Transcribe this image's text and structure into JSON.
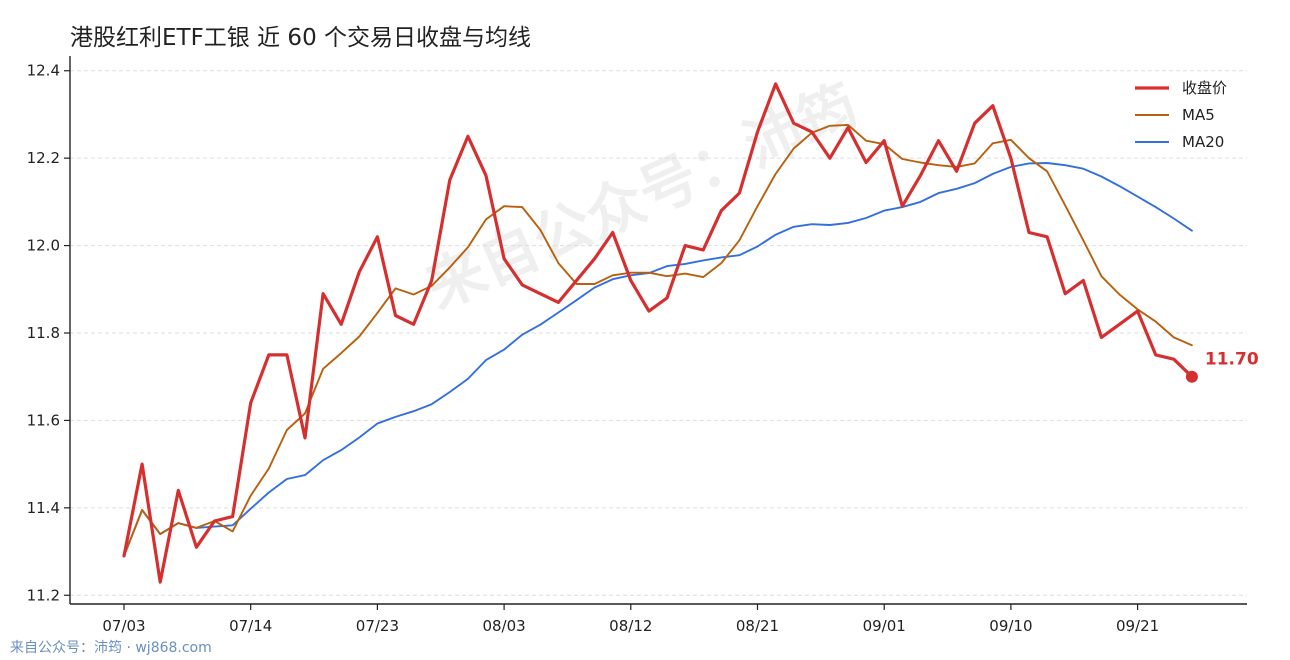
{
  "title": "港股红利ETF工银 近 60 个交易日收盘与均线",
  "footer": "来自公众号：沛筠 · wj868.com",
  "watermark": "来自公众号：沛筠",
  "colors": {
    "close": "#d62f2f",
    "ma5": "#b8600e",
    "ma20": "#3370dd",
    "grid": "#dddddd",
    "axis": "#222222"
  },
  "chart_data": {
    "type": "line",
    "title": "港股红利ETF工银 近 60 个交易日收盘与均线",
    "ylim": [
      11.18,
      12.42
    ],
    "yticks": [
      "11.2",
      "11.4",
      "11.6",
      "11.8",
      "12.0",
      "12.2",
      "12.4"
    ],
    "xticks": [
      {
        "index": 0,
        "label": "07/03"
      },
      {
        "index": 7,
        "label": "07/14"
      },
      {
        "index": 14,
        "label": "07/23"
      },
      {
        "index": 21,
        "label": "08/03"
      },
      {
        "index": 28,
        "label": "08/12"
      },
      {
        "index": 35,
        "label": "08/21"
      },
      {
        "index": 42,
        "label": "09/01"
      },
      {
        "index": 49,
        "label": "09/10"
      },
      {
        "index": 56,
        "label": "09/21"
      }
    ],
    "grid": "horizontal dashed",
    "legend_position": "top-right",
    "last_value_label": "11.70",
    "series": [
      {
        "name": "收盘价",
        "values": [
          11.29,
          11.5,
          11.23,
          11.44,
          11.31,
          11.37,
          11.38,
          11.64,
          11.75,
          11.75,
          11.56,
          11.89,
          11.82,
          11.94,
          12.02,
          11.84,
          11.82,
          11.92,
          12.15,
          12.25,
          12.16,
          11.97,
          11.91,
          11.89,
          11.87,
          11.92,
          11.97,
          12.03,
          11.92,
          11.85,
          11.88,
          12.0,
          11.99,
          12.08,
          12.12,
          12.26,
          12.37,
          12.28,
          12.26,
          12.2,
          12.27,
          12.19,
          12.24,
          12.09,
          12.16,
          12.24,
          12.17,
          12.28,
          12.32,
          12.2,
          12.03,
          12.02,
          11.89,
          11.92,
          11.79,
          11.82,
          11.85,
          11.75,
          11.74,
          11.7
        ]
      },
      {
        "name": "MA5",
        "values": [
          11.29,
          11.395,
          11.34,
          11.365,
          11.354,
          11.37,
          11.346,
          11.428,
          11.49,
          11.578,
          11.616,
          11.718,
          11.754,
          11.792,
          11.846,
          11.902,
          11.888,
          11.908,
          11.95,
          11.996,
          12.06,
          12.09,
          12.088,
          12.036,
          11.96,
          11.912,
          11.912,
          11.932,
          11.938,
          11.938,
          11.93,
          11.936,
          11.928,
          11.96,
          12.012,
          12.09,
          12.164,
          12.222,
          12.258,
          12.274,
          12.276,
          12.24,
          12.232,
          12.198,
          12.19,
          12.184,
          12.18,
          12.188,
          12.234,
          12.242,
          12.2,
          12.17,
          12.092,
          12.012,
          11.93,
          11.888,
          11.854,
          11.826,
          11.79,
          11.772
        ]
      },
      {
        "name": "MA20",
        "values": [
          11.29,
          11.395,
          11.34,
          11.365,
          11.354,
          11.357,
          11.36,
          11.398,
          11.435,
          11.466,
          11.475,
          11.509,
          11.532,
          11.561,
          11.593,
          11.608,
          11.621,
          11.637,
          11.665,
          11.695,
          11.738,
          11.762,
          11.796,
          11.819,
          11.847,
          11.875,
          11.904,
          11.923,
          11.932,
          11.937,
          11.953,
          11.958,
          11.966,
          11.973,
          11.978,
          11.998,
          12.025,
          12.043,
          12.049,
          12.047,
          12.052,
          12.063,
          12.08,
          12.088,
          12.1,
          12.12,
          12.13,
          12.143,
          12.164,
          12.18,
          12.188,
          12.189,
          12.184,
          12.176,
          12.158,
          12.136,
          12.112,
          12.088,
          12.062,
          12.034
        ]
      }
    ]
  }
}
